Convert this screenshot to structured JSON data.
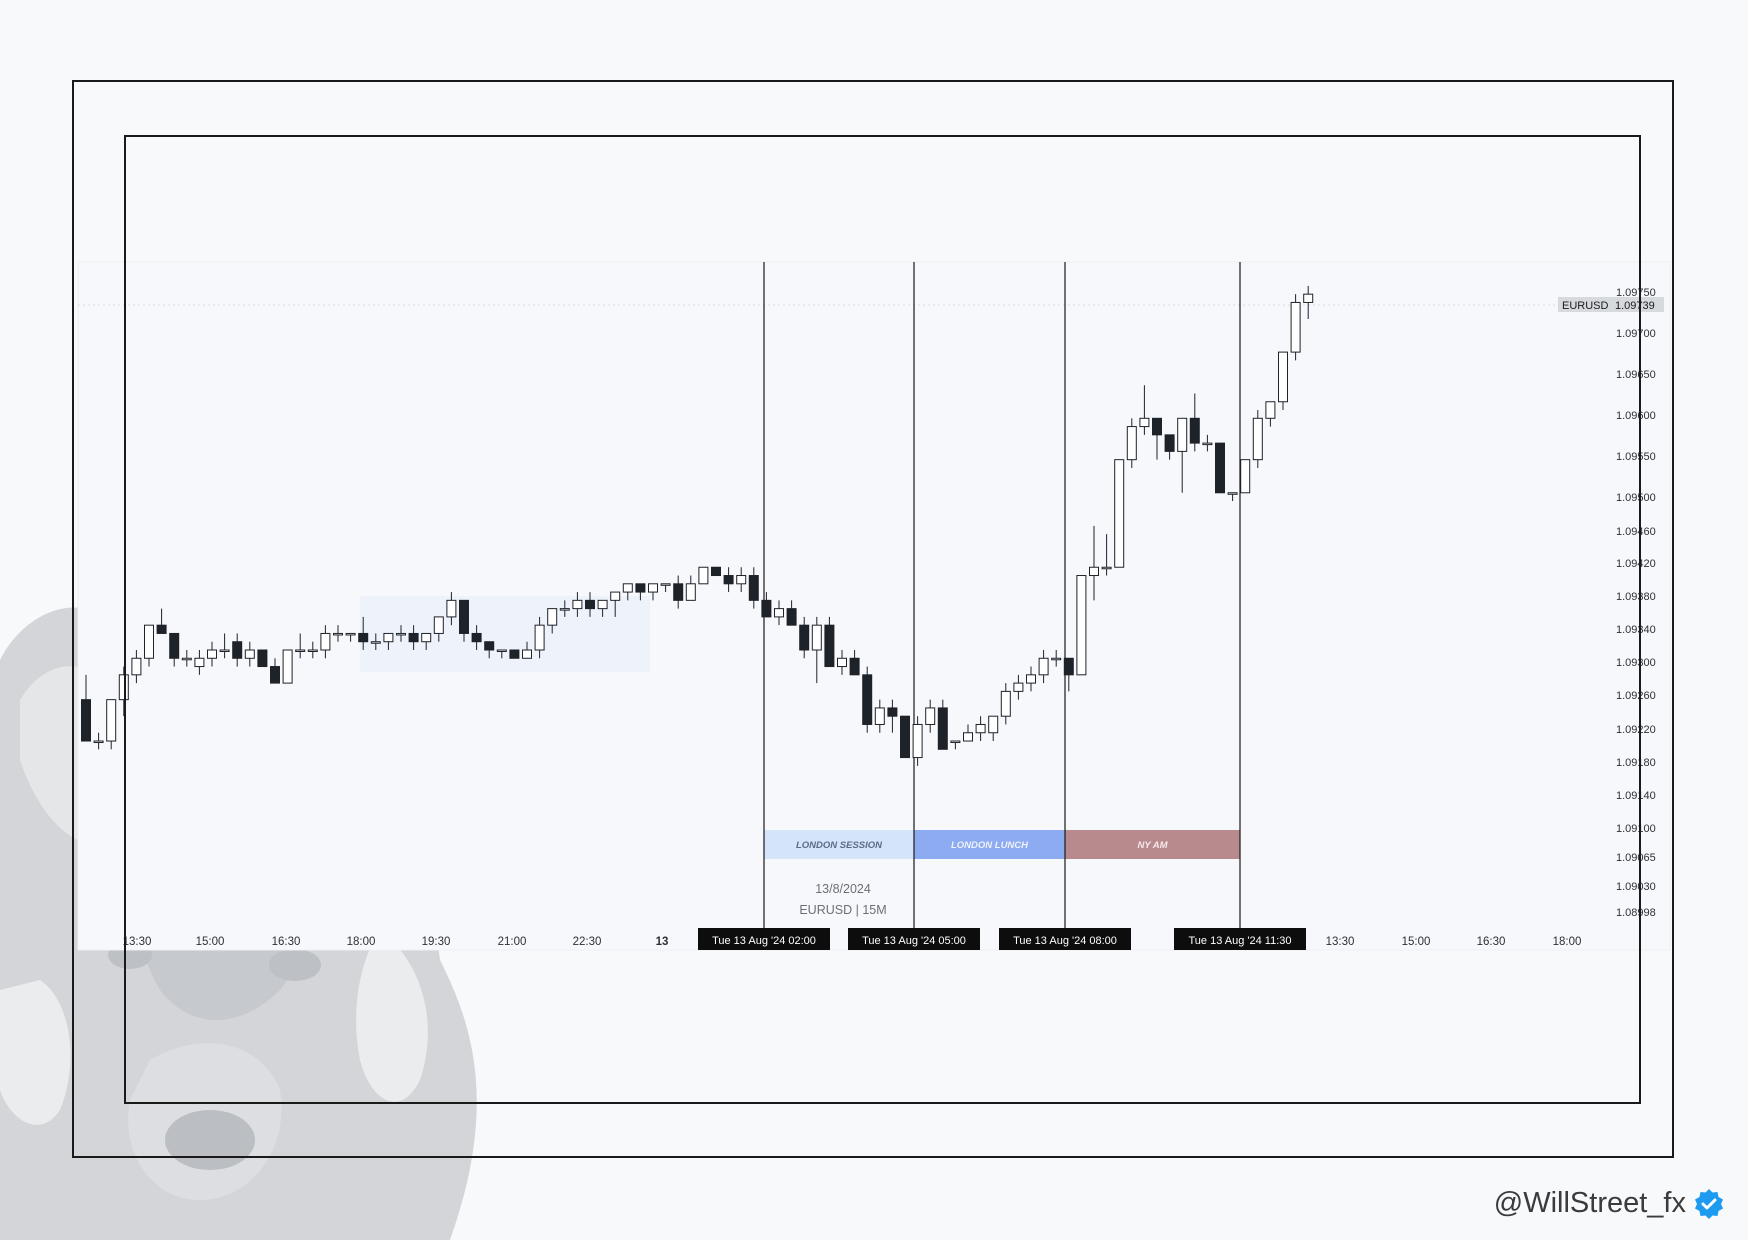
{
  "watermark": {
    "icon": "wolf-icon"
  },
  "footer": {
    "handle": "@WillStreet_fx",
    "verified_icon": "verified-badge-icon",
    "verified_color": "#1d9bf0"
  },
  "chart_data": {
    "type": "candlestick",
    "symbol": "EURUSD",
    "timeframe": "15M",
    "info_date": "13/8/2024",
    "info_pair": "EURUSD | 15M",
    "last_price": "1.09739",
    "price_axis": {
      "labels": [
        "1.09750",
        "1.09700",
        "1.09650",
        "1.09600",
        "1.09550",
        "1.09500",
        "1.09460",
        "1.09420",
        "1.09380",
        "1.09340",
        "1.09300",
        "1.09260",
        "1.09220",
        "1.09180",
        "1.09140",
        "1.09100",
        "1.09065",
        "1.09030",
        "1.08998"
      ]
    },
    "time_axis": {
      "labels": [
        "13:30",
        "15:00",
        "16:30",
        "18:00",
        "19:30",
        "21:00",
        "22:30",
        "13",
        "13:30",
        "15:00",
        "16:30",
        "18:00"
      ],
      "bold": [
        "13"
      ]
    },
    "vertical_markers": [
      {
        "label": "Tue 13 Aug '24   02:00"
      },
      {
        "label": "Tue 13 Aug '24   05:00"
      },
      {
        "label": "Tue 13 Aug '24   08:00"
      },
      {
        "label": "Tue 13 Aug '24   11:30"
      }
    ],
    "sessions": [
      {
        "label": "LONDON SESSION",
        "color": "#d4e4f9",
        "text_color": "#5a6c86"
      },
      {
        "label": "LONDON LUNCH",
        "color": "#8dabf0",
        "text_color": "#eef2fb"
      },
      {
        "label": "NY AM",
        "color": "#b88a8e",
        "text_color": "#f5eaea"
      }
    ],
    "colors": {
      "up": "#ffffff",
      "down": "#1e2229",
      "wick": "#1e2229"
    },
    "candles": [
      [
        1.0925,
        1.0928,
        1.092,
        1.092
      ],
      [
        1.092,
        1.0921,
        1.0919,
        1.092
      ],
      [
        1.092,
        1.0925,
        1.0919,
        1.0925
      ],
      [
        1.0925,
        1.0929,
        1.0923,
        1.0928
      ],
      [
        1.0928,
        1.0931,
        1.0927,
        1.093
      ],
      [
        1.093,
        1.0934,
        1.0929,
        1.0934
      ],
      [
        1.0934,
        1.0936,
        1.0933,
        1.0933
      ],
      [
        1.0933,
        1.0933,
        1.0929,
        1.093
      ],
      [
        1.093,
        1.0931,
        1.0929,
        1.093
      ],
      [
        1.0929,
        1.0931,
        1.0928,
        1.093
      ],
      [
        1.093,
        1.0932,
        1.0929,
        1.0931
      ],
      [
        1.0931,
        1.0933,
        1.093,
        1.0931
      ],
      [
        1.0932,
        1.0933,
        1.0929,
        1.093
      ],
      [
        1.093,
        1.0932,
        1.0929,
        1.0931
      ],
      [
        1.0931,
        1.0931,
        1.0929,
        1.0929
      ],
      [
        1.0929,
        1.093,
        1.0927,
        1.0927
      ],
      [
        1.0927,
        1.0931,
        1.0927,
        1.0931
      ],
      [
        1.0931,
        1.0933,
        1.093,
        1.0931
      ],
      [
        1.0931,
        1.0932,
        1.093,
        1.0931
      ],
      [
        1.0931,
        1.0934,
        1.093,
        1.0933
      ],
      [
        1.0933,
        1.0934,
        1.0932,
        1.0933
      ],
      [
        1.0933,
        1.0933,
        1.0932,
        1.0933
      ],
      [
        1.0933,
        1.0935,
        1.0931,
        1.0932
      ],
      [
        1.0932,
        1.0933,
        1.0931,
        1.0932
      ],
      [
        1.0932,
        1.0933,
        1.0931,
        1.0933
      ],
      [
        1.0933,
        1.0934,
        1.0932,
        1.0933
      ],
      [
        1.0933,
        1.0934,
        1.0931,
        1.0932
      ],
      [
        1.0932,
        1.0933,
        1.0931,
        1.0933
      ],
      [
        1.0933,
        1.0935,
        1.0932,
        1.0935
      ],
      [
        1.0935,
        1.0938,
        1.0934,
        1.0937
      ],
      [
        1.0937,
        1.0937,
        1.0932,
        1.0933
      ],
      [
        1.0933,
        1.0934,
        1.0931,
        1.0932
      ],
      [
        1.0932,
        1.0932,
        1.093,
        1.0931
      ],
      [
        1.0931,
        1.0931,
        1.093,
        1.0931
      ],
      [
        1.0931,
        1.0931,
        1.093,
        1.093
      ],
      [
        1.093,
        1.0932,
        1.093,
        1.0931
      ],
      [
        1.0931,
        1.0935,
        1.093,
        1.0934
      ],
      [
        1.0934,
        1.0936,
        1.0933,
        1.0936
      ],
      [
        1.0936,
        1.0937,
        1.0935,
        1.0936
      ],
      [
        1.0936,
        1.0938,
        1.0935,
        1.0937
      ],
      [
        1.0937,
        1.0938,
        1.0935,
        1.0936
      ],
      [
        1.0936,
        1.0937,
        1.0935,
        1.0937
      ],
      [
        1.0937,
        1.0938,
        1.0935,
        1.0938
      ],
      [
        1.0938,
        1.0939,
        1.0937,
        1.0939
      ],
      [
        1.0939,
        1.0939,
        1.0937,
        1.0938
      ],
      [
        1.0938,
        1.0939,
        1.0937,
        1.0939
      ],
      [
        1.0939,
        1.0939,
        1.0938,
        1.0939
      ],
      [
        1.0939,
        1.094,
        1.0936,
        1.0937
      ],
      [
        1.0937,
        1.094,
        1.0937,
        1.0939
      ],
      [
        1.0939,
        1.0941,
        1.0939,
        1.0941
      ],
      [
        1.0941,
        1.0941,
        1.094,
        1.094
      ],
      [
        1.094,
        1.0941,
        1.0938,
        1.0939
      ],
      [
        1.0939,
        1.0941,
        1.0938,
        1.094
      ],
      [
        1.094,
        1.0941,
        1.0936,
        1.0937
      ],
      [
        1.0937,
        1.0938,
        1.0935,
        1.0935
      ],
      [
        1.0935,
        1.0937,
        1.0934,
        1.0936
      ],
      [
        1.0936,
        1.0937,
        1.0934,
        1.0934
      ],
      [
        1.0934,
        1.0935,
        1.093,
        1.0931
      ],
      [
        1.0931,
        1.0935,
        1.0927,
        1.0934
      ],
      [
        1.0934,
        1.0935,
        1.0929,
        1.0929
      ],
      [
        1.0929,
        1.0931,
        1.0928,
        1.093
      ],
      [
        1.093,
        1.0931,
        1.0928,
        1.0928
      ],
      [
        1.0928,
        1.0929,
        1.0921,
        1.0922
      ],
      [
        1.0922,
        1.0925,
        1.0921,
        1.0924
      ],
      [
        1.0924,
        1.0925,
        1.0921,
        1.0923
      ],
      [
        1.0923,
        1.0923,
        1.0918,
        1.0918
      ],
      [
        1.0918,
        1.0923,
        1.0917,
        1.0922
      ],
      [
        1.0922,
        1.0925,
        1.0921,
        1.0924
      ],
      [
        1.0924,
        1.0925,
        1.0919,
        1.0919
      ],
      [
        1.092,
        1.092,
        1.0919,
        1.092
      ],
      [
        1.092,
        1.0922,
        1.092,
        1.0921
      ],
      [
        1.0921,
        1.0923,
        1.092,
        1.0922
      ],
      [
        1.0921,
        1.0923,
        1.092,
        1.0923
      ],
      [
        1.0923,
        1.0927,
        1.0922,
        1.0926
      ],
      [
        1.0926,
        1.0928,
        1.0925,
        1.0927
      ],
      [
        1.0927,
        1.0929,
        1.0926,
        1.0928
      ],
      [
        1.0928,
        1.0931,
        1.0927,
        1.093
      ],
      [
        1.093,
        1.0931,
        1.0929,
        1.093
      ],
      [
        1.093,
        1.093,
        1.0926,
        1.0928
      ],
      [
        1.0928,
        1.094,
        1.0928,
        1.094
      ],
      [
        1.094,
        1.0946,
        1.0937,
        1.0941
      ],
      [
        1.0941,
        1.0945,
        1.094,
        1.0941
      ],
      [
        1.0941,
        1.0954,
        1.0941,
        1.0954
      ],
      [
        1.0954,
        1.0959,
        1.0953,
        1.0958
      ],
      [
        1.0958,
        1.0963,
        1.0957,
        1.0959
      ],
      [
        1.0959,
        1.0959,
        1.0954,
        1.0957
      ],
      [
        1.0957,
        1.0957,
        1.0954,
        1.0955
      ],
      [
        1.0955,
        1.0959,
        1.095,
        1.0959
      ],
      [
        1.0959,
        1.0962,
        1.0955,
        1.0956
      ],
      [
        1.0956,
        1.0957,
        1.0955,
        1.0956
      ],
      [
        1.0956,
        1.0956,
        1.095,
        1.095
      ],
      [
        1.095,
        1.095,
        1.0949,
        1.095
      ],
      [
        1.095,
        1.0954,
        1.095,
        1.0954
      ],
      [
        1.0954,
        1.096,
        1.0953,
        1.0959
      ],
      [
        1.0959,
        1.0961,
        1.0958,
        1.0961
      ],
      [
        1.0961,
        1.0967,
        1.096,
        1.0967
      ],
      [
        1.0967,
        1.0974,
        1.0966,
        1.0973
      ],
      [
        1.0973,
        1.0975,
        1.0971,
        1.0974
      ]
    ]
  }
}
